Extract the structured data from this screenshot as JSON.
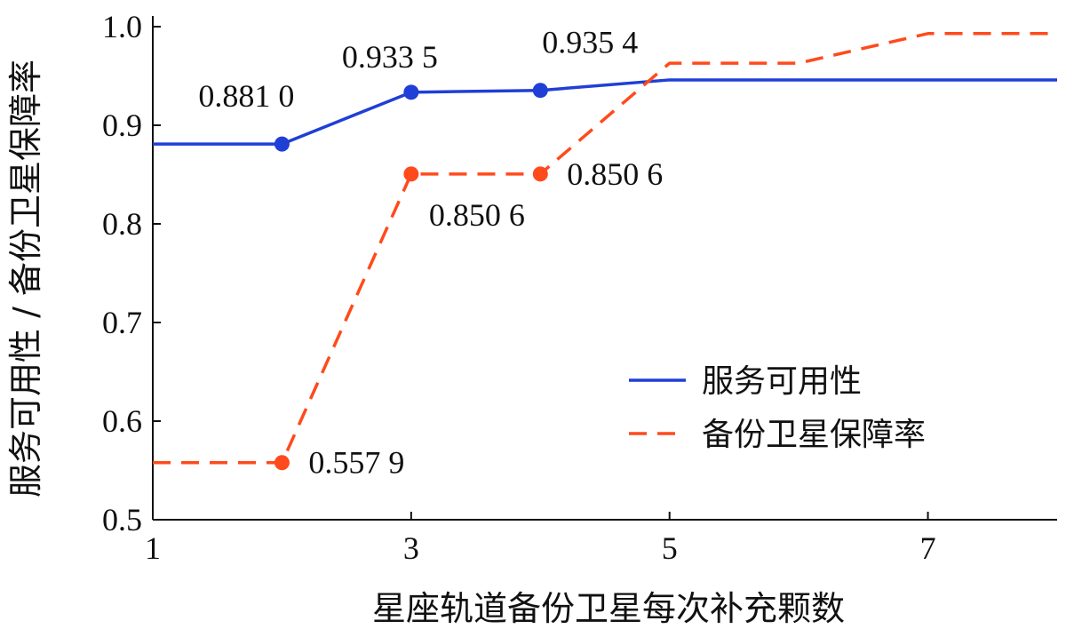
{
  "chart_data": {
    "type": "line",
    "xlabel": "星座轨道备份卫星每次补充颗数",
    "ylabel": "服务可用性 / 备份卫星保障率",
    "xlim": [
      1,
      8
    ],
    "ylim": [
      0.5,
      1.0
    ],
    "x_ticks": [
      1,
      3,
      5,
      7
    ],
    "x_tick_labels": [
      "1",
      "3",
      "5",
      "7"
    ],
    "y_ticks": [
      0.5,
      0.6,
      0.7,
      0.8,
      0.9,
      1.0
    ],
    "y_tick_labels": [
      "0.5",
      "0.6",
      "0.7",
      "0.8",
      "0.9",
      "1.0"
    ],
    "grid": false,
    "legend_position": "bottom-right",
    "series": [
      {
        "name": "服务可用性",
        "color": "#1f3fd6",
        "line_style": "solid",
        "x": [
          1,
          2,
          3,
          4,
          5,
          6,
          7,
          8
        ],
        "y": [
          0.881,
          0.881,
          0.9335,
          0.9354,
          0.946,
          0.946,
          0.946,
          0.946
        ],
        "markers": [
          {
            "x": 2,
            "y": 0.881,
            "label": "0.881 0",
            "label_position": "above-left"
          },
          {
            "x": 3,
            "y": 0.9335,
            "label": "0.933 5",
            "label_position": "above"
          },
          {
            "x": 4,
            "y": 0.9354,
            "label": "0.935 4",
            "label_position": "above-right"
          }
        ]
      },
      {
        "name": "备份卫星保障率",
        "color": "#ff4a1c",
        "line_style": "dashed",
        "x": [
          1,
          2,
          3,
          4,
          5,
          6,
          7,
          8
        ],
        "y": [
          0.5579,
          0.5579,
          0.8506,
          0.8506,
          0.963,
          0.963,
          0.993,
          0.993
        ],
        "markers": [
          {
            "x": 2,
            "y": 0.5579,
            "label": "0.557 9",
            "label_position": "right"
          },
          {
            "x": 3,
            "y": 0.8506,
            "label": "0.850 6",
            "label_position": "below-right"
          },
          {
            "x": 4,
            "y": 0.8506,
            "label": "0.850 6",
            "label_position": "right"
          }
        ]
      }
    ]
  }
}
